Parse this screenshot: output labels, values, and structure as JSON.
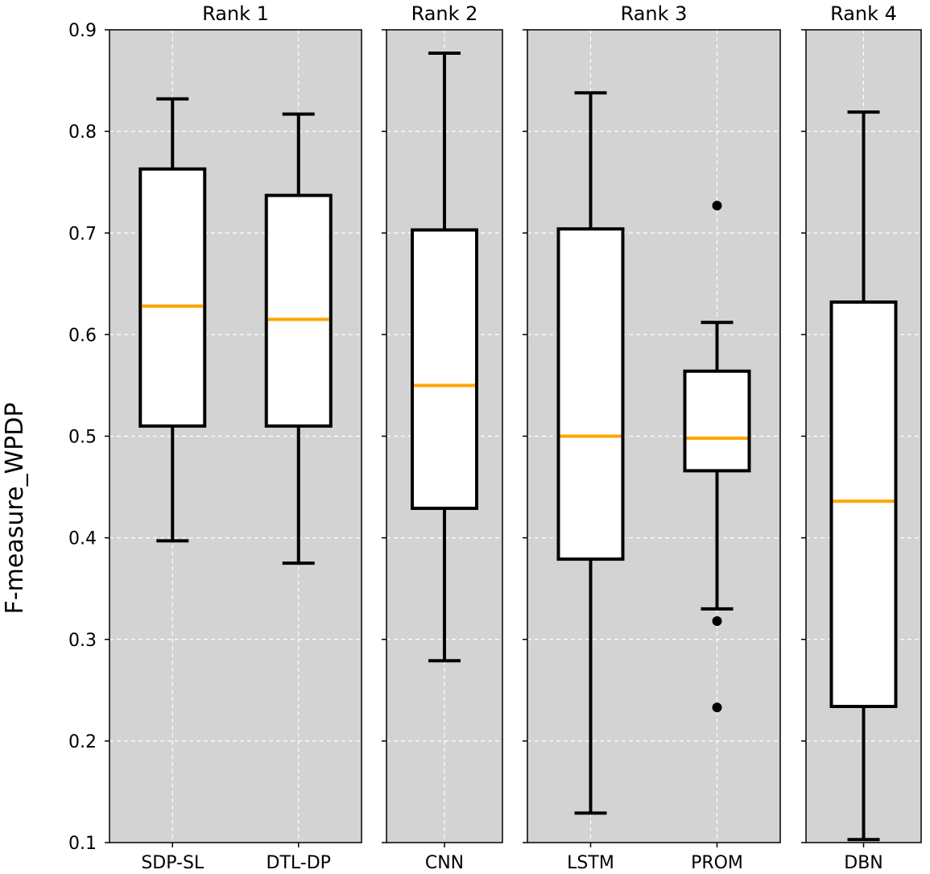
{
  "chart_data": {
    "type": "boxplot",
    "ylabel": "F-measure_WPDP",
    "ylim": [
      0.1,
      0.9
    ],
    "yticks": [
      "0.1",
      "0.2",
      "0.3",
      "0.4",
      "0.5",
      "0.6",
      "0.7",
      "0.8",
      "0.9"
    ],
    "grid": true,
    "colors": {
      "panel_bg": "#d3d3d3",
      "box_fill": "#ffffff",
      "median": "#ffa500",
      "line": "#000000",
      "grid": "#ffffff"
    },
    "panels": [
      {
        "title": "Rank 1",
        "boxes": [
          {
            "label": "SDP-SL",
            "whisker_low": 0.397,
            "q1": 0.51,
            "median": 0.628,
            "q3": 0.763,
            "whisker_high": 0.832,
            "outliers": []
          },
          {
            "label": "DTL-DP",
            "whisker_low": 0.375,
            "q1": 0.51,
            "median": 0.615,
            "q3": 0.737,
            "whisker_high": 0.817,
            "outliers": []
          }
        ]
      },
      {
        "title": "Rank 2",
        "boxes": [
          {
            "label": "CNN",
            "whisker_low": 0.279,
            "q1": 0.429,
            "median": 0.55,
            "q3": 0.703,
            "whisker_high": 0.877,
            "outliers": []
          }
        ]
      },
      {
        "title": "Rank 3",
        "boxes": [
          {
            "label": "LSTM",
            "whisker_low": 0.129,
            "q1": 0.379,
            "median": 0.5,
            "q3": 0.704,
            "whisker_high": 0.838,
            "outliers": []
          },
          {
            "label": "PROM",
            "whisker_low": 0.33,
            "q1": 0.466,
            "median": 0.498,
            "q3": 0.564,
            "whisker_high": 0.612,
            "outliers": [
              0.727,
              0.318,
              0.233
            ]
          }
        ]
      },
      {
        "title": "Rank 4",
        "boxes": [
          {
            "label": "DBN",
            "whisker_low": 0.103,
            "q1": 0.234,
            "median": 0.436,
            "q3": 0.632,
            "whisker_high": 0.819,
            "outliers": []
          }
        ]
      }
    ]
  }
}
